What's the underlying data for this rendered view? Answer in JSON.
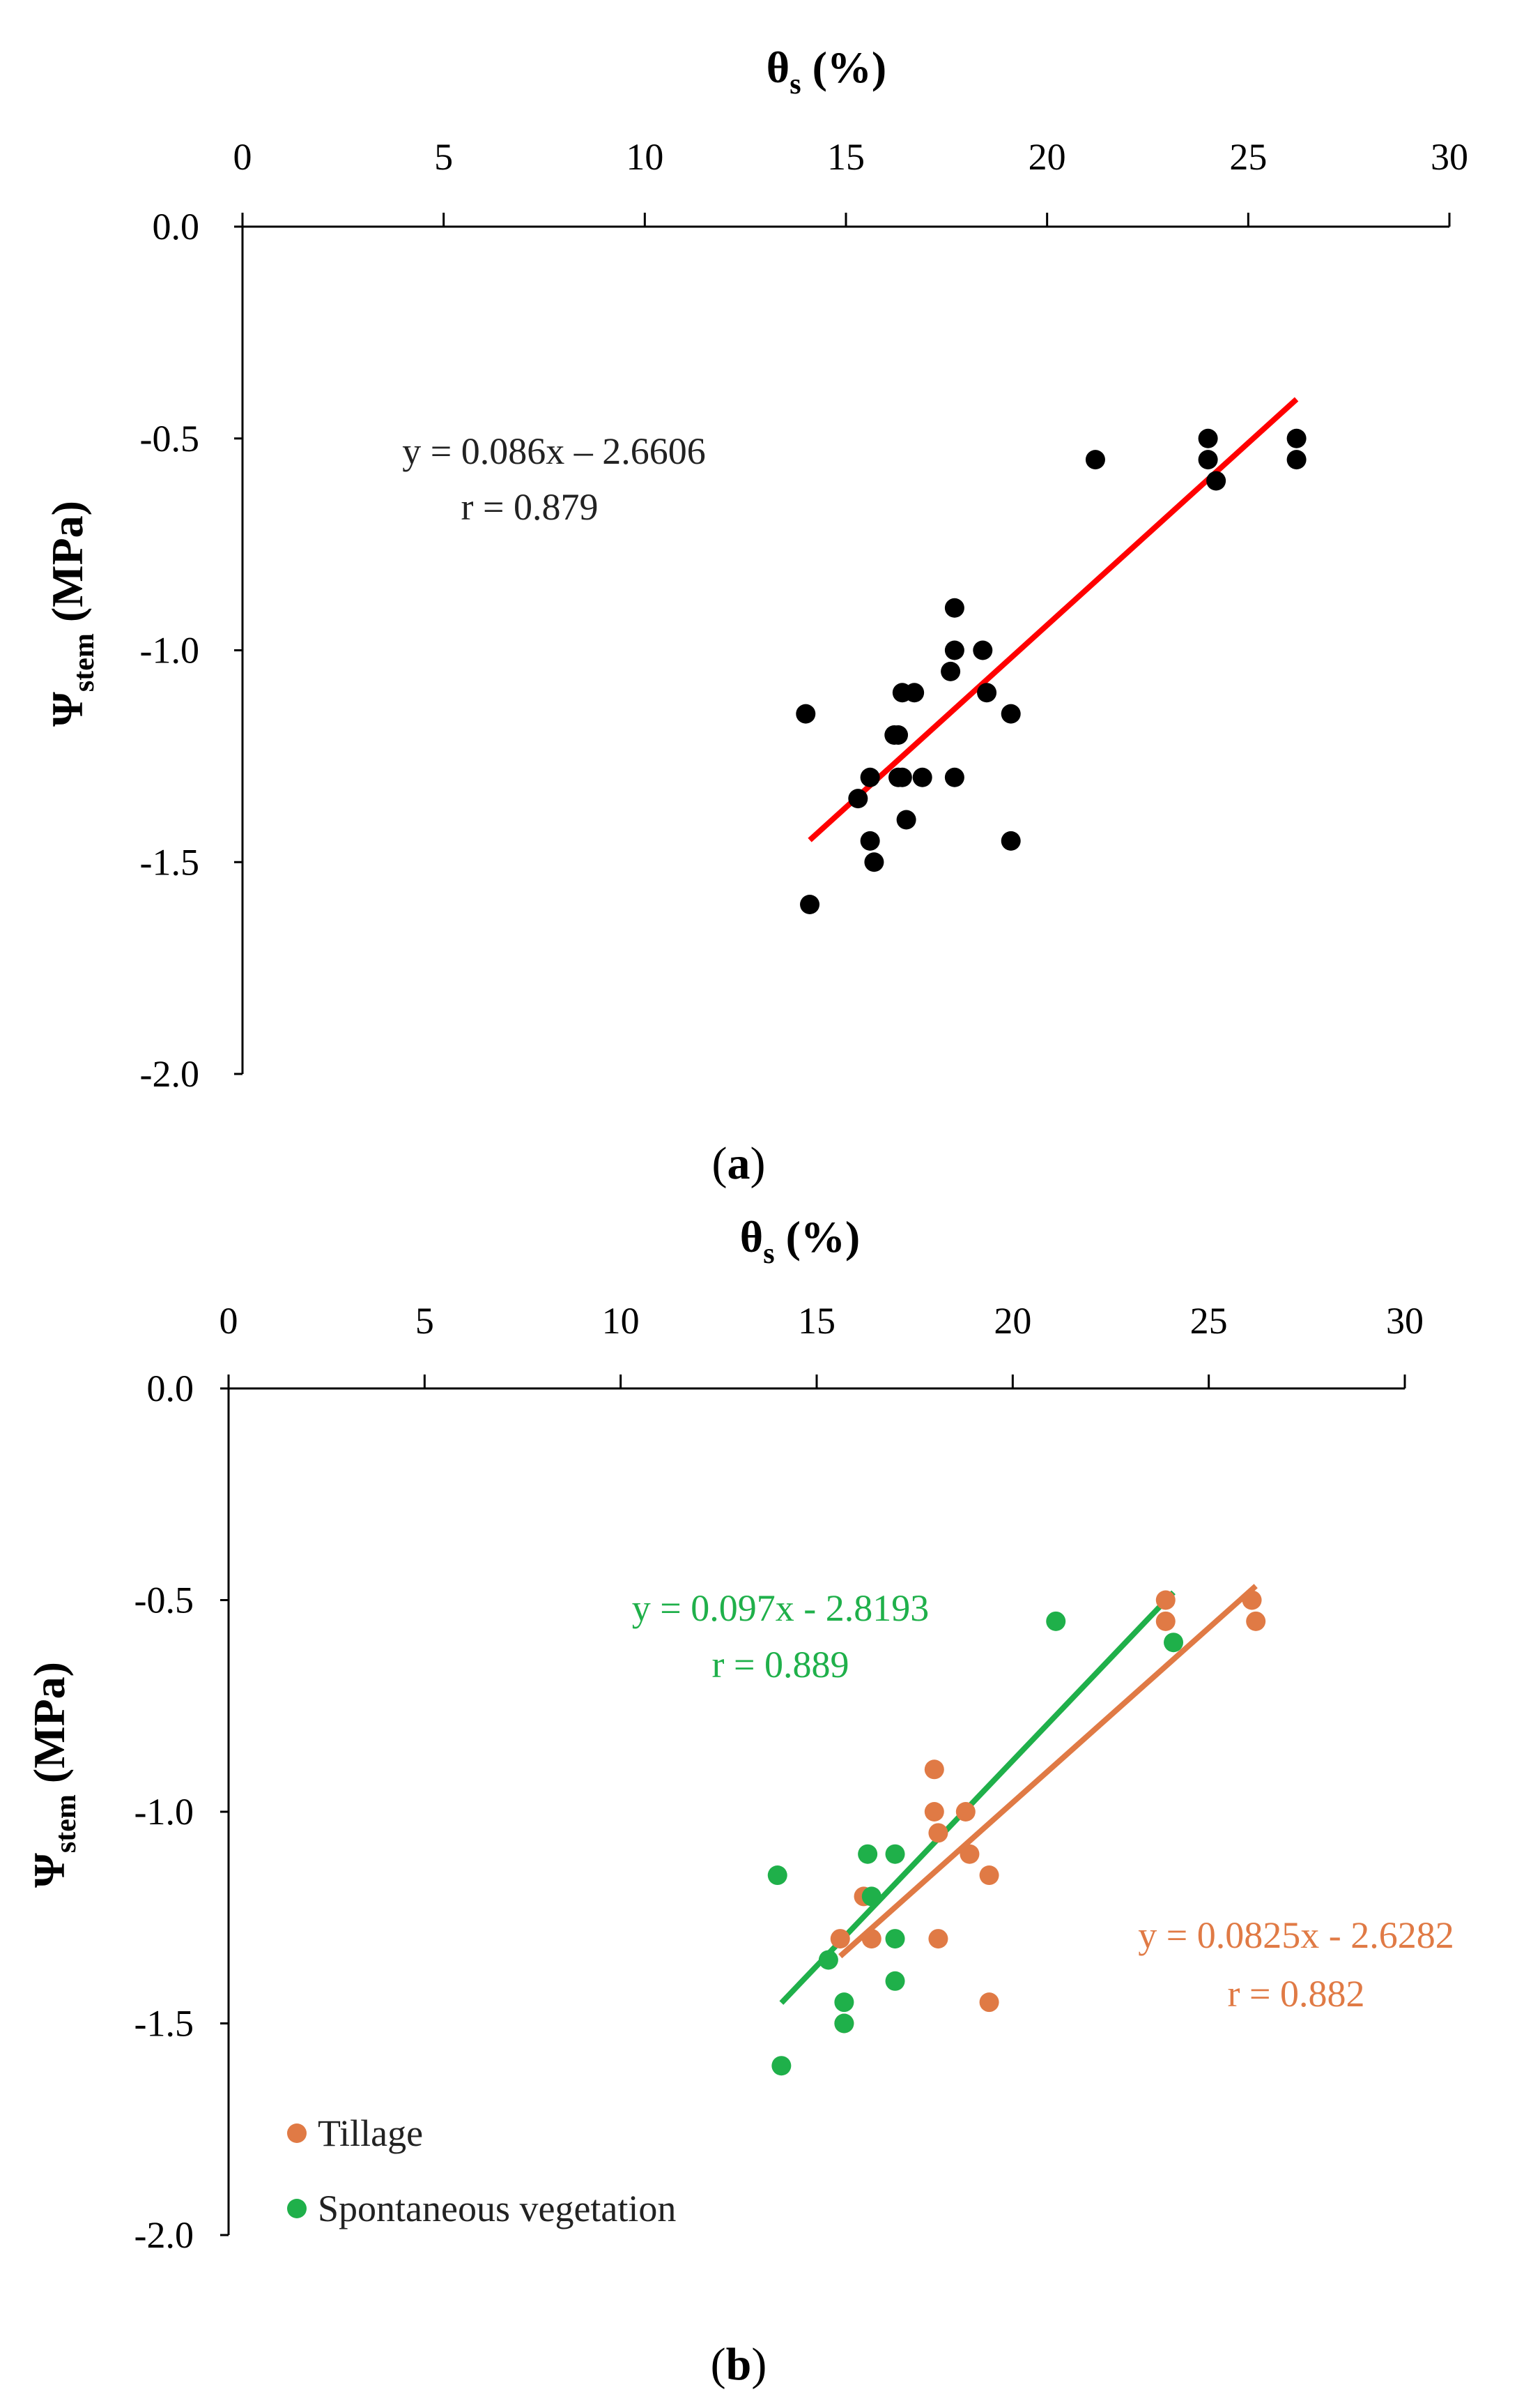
{
  "chart_data": [
    {
      "panel_label": "a",
      "type": "scatter",
      "xlabel": {
        "main": "θ",
        "sub": "s",
        "tail": " (%)"
      },
      "ylabel": {
        "main": "Ψ",
        "sub": "stem",
        "tail": " (MPa)"
      },
      "xlim": [
        0,
        30
      ],
      "ylim": [
        -2.0,
        0.0
      ],
      "x_ticks": [
        0,
        5,
        10,
        15,
        20,
        25,
        30
      ],
      "x_tick_labels": [
        "0",
        "5",
        "10",
        "15",
        "20",
        "25",
        "30"
      ],
      "y_ticks": [
        0.0,
        -0.5,
        -1.0,
        -1.5,
        -2.0
      ],
      "y_tick_labels": [
        "0.0",
        "-0.5",
        "-1.0",
        "-1.5",
        "-2.0"
      ],
      "series": [
        {
          "name": "all",
          "color": "#000000",
          "x": [
            14.0,
            14.1,
            15.3,
            15.6,
            15.6,
            15.7,
            16.2,
            16.3,
            16.3,
            16.4,
            16.4,
            16.5,
            16.7,
            16.9,
            17.6,
            17.7,
            17.7,
            17.7,
            18.4,
            18.5,
            19.1,
            19.1,
            21.2,
            24.0,
            24.0,
            24.2,
            26.2,
            26.2
          ],
          "y": [
            -1.15,
            -1.6,
            -1.35,
            -1.3,
            -1.45,
            -1.5,
            -1.2,
            -1.2,
            -1.3,
            -1.1,
            -1.3,
            -1.4,
            -1.1,
            -1.3,
            -1.05,
            -1.0,
            -0.9,
            -1.3,
            -1.0,
            -1.1,
            -1.15,
            -1.45,
            -0.55,
            -0.5,
            -0.55,
            -0.6,
            -0.5,
            -0.55
          ]
        }
      ],
      "trendlines": [
        {
          "series": "all",
          "color": "#ff0000",
          "x_range": [
            14.1,
            26.2
          ],
          "slope": 0.086,
          "intercept": -2.6606,
          "equation": "y = 0.086x – 2.6606",
          "r_label": "r = 0.879"
        }
      ]
    },
    {
      "panel_label": "b",
      "type": "scatter",
      "xlabel": {
        "main": "θ",
        "sub": "s",
        "tail": " (%)"
      },
      "ylabel": {
        "main": "Ψ",
        "sub": "stem",
        "tail": " (MPa)"
      },
      "xlim": [
        0,
        30
      ],
      "ylim": [
        -2.0,
        0.0
      ],
      "x_ticks": [
        0,
        5,
        10,
        15,
        20,
        25,
        30
      ],
      "x_tick_labels": [
        "0",
        "5",
        "10",
        "15",
        "20",
        "25",
        "30"
      ],
      "y_ticks": [
        0.0,
        -0.5,
        -1.0,
        -1.5,
        -2.0
      ],
      "y_tick_labels": [
        "0.0",
        "-0.5",
        "-1.0",
        "-1.5",
        "-2.0"
      ],
      "series": [
        {
          "name": "Tillage",
          "color": "#e07a45",
          "x": [
            15.6,
            15.7,
            16.2,
            16.4,
            18.0,
            18.0,
            18.1,
            18.1,
            18.8,
            18.9,
            19.4,
            19.4,
            23.9,
            23.9,
            26.1,
            26.2
          ],
          "y": [
            -1.3,
            -1.5,
            -1.2,
            -1.3,
            -0.9,
            -1.0,
            -1.05,
            -1.3,
            -1.0,
            -1.1,
            -1.15,
            -1.45,
            -0.5,
            -0.55,
            -0.5,
            -0.55
          ]
        },
        {
          "name": "Spontaneous vegetation",
          "color": "#1fb04a",
          "x": [
            14.0,
            14.1,
            15.3,
            15.7,
            15.7,
            16.3,
            16.4,
            17.0,
            17.0,
            17.0,
            21.1,
            24.1
          ],
          "y": [
            -1.15,
            -1.6,
            -1.35,
            -1.45,
            -1.5,
            -1.1,
            -1.2,
            -1.1,
            -1.3,
            -1.4,
            -0.55,
            -0.6
          ]
        }
      ],
      "trendlines": [
        {
          "series": "Spontaneous vegetation",
          "color": "#1fb04a",
          "x_range": [
            14.1,
            24.1
          ],
          "slope": 0.097,
          "intercept": -2.8193,
          "equation": "y = 0.097x - 2.8193",
          "r_label": "r = 0.889"
        },
        {
          "series": "Tillage",
          "color": "#e07a45",
          "x_range": [
            15.6,
            26.2
          ],
          "slope": 0.0825,
          "intercept": -2.6282,
          "equation": "y = 0.0825x - 2.6282",
          "r_label": "r = 0.882"
        }
      ],
      "legend": {
        "position": "bottom-left",
        "entries": [
          {
            "label": "Tillage",
            "color": "#e07a45"
          },
          {
            "label": "Spontaneous vegetation",
            "color": "#1fb04a"
          }
        ]
      }
    }
  ]
}
